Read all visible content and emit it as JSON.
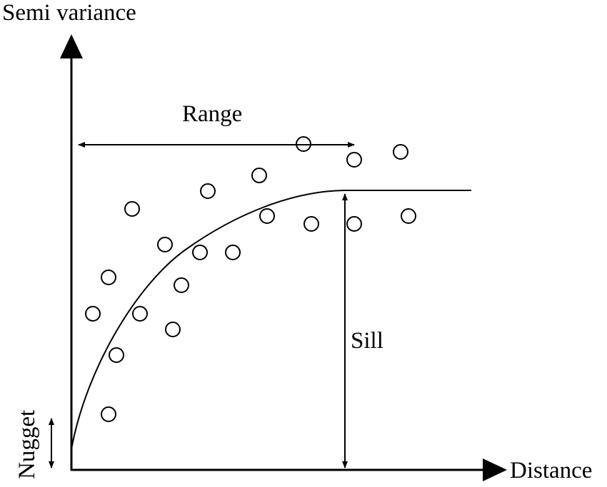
{
  "diagram": {
    "y_axis_label": "Semi variance",
    "x_axis_label": "Distance",
    "range_label": "Range",
    "sill_label": "Sill",
    "nugget_label": "Nugget"
  },
  "colors": {
    "ink": "#000000",
    "background": "#ffffff"
  },
  "chart_data": {
    "type": "scatter",
    "title": "",
    "xlabel": "Distance",
    "ylabel": "Semi variance",
    "annotations": [
      "Range",
      "Sill",
      "Nugget"
    ],
    "model_curve": "spherical variogram model: rises from nugget, levels off at sill beyond range",
    "points": []
  }
}
